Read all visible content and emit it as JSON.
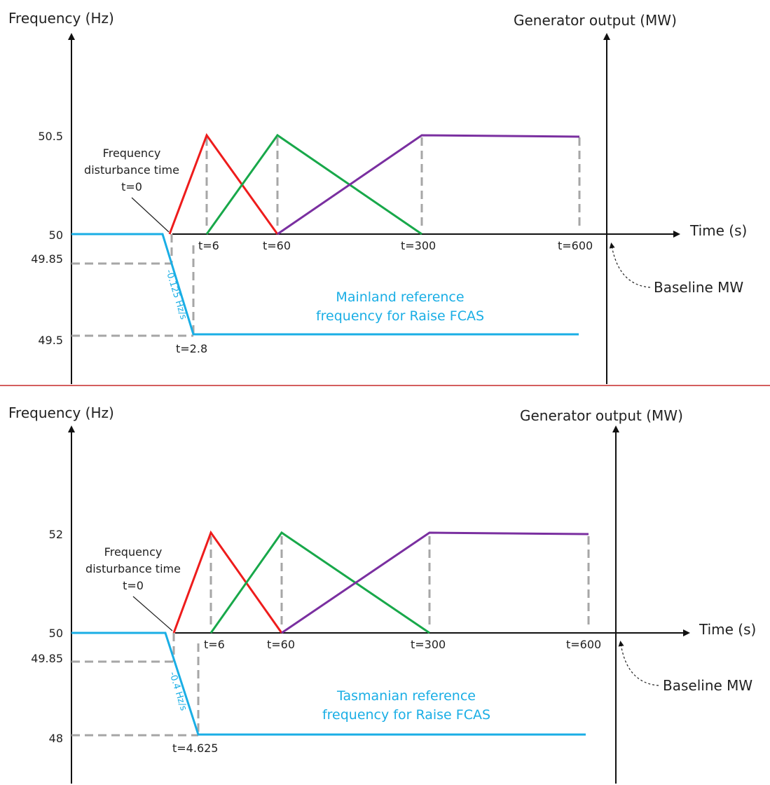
{
  "colors": {
    "axis": "#111111",
    "guide": "#a6a6a6",
    "freq": "#1aaee5",
    "red": "#ee1c1c",
    "green": "#18a84a",
    "purple": "#7a2fa0",
    "separator": "#c62828"
  },
  "panels": [
    {
      "id": "mainland",
      "y_axis_title": "Frequency (Hz)",
      "right_axis_title": "Generator output (MW)",
      "x_axis_title": "Time (s)",
      "baseline_label": "Baseline MW",
      "annotation": [
        "Frequency",
        "disturbance time",
        "t=0"
      ],
      "caption": [
        "Mainland reference",
        "frequency for Raise FCAS"
      ],
      "rate_label": "-0.125 Hz/s",
      "y_ticks": [
        "50.5",
        "50",
        "49.85",
        "49.5"
      ],
      "time_labels": [
        "t=6",
        "t=60",
        "t=300",
        "t=600"
      ],
      "drop_time_label": "t=2.8",
      "frequency_curve": {
        "nominal_hz": 50,
        "min_hz": 49.5,
        "rate_hz_per_s": -0.125,
        "end_time_s": 600
      },
      "generator_output": {
        "red": {
          "points_s": [
            0,
            6,
            60
          ]
        },
        "green": {
          "points_s": [
            6,
            60,
            300
          ]
        },
        "purple": {
          "points_s": [
            60,
            300,
            600
          ]
        }
      }
    },
    {
      "id": "tasmania",
      "y_axis_title": "Frequency (Hz)",
      "right_axis_title": "Generator output (MW)",
      "x_axis_title": "Time (s)",
      "baseline_label": "Baseline MW",
      "annotation": [
        "Frequency",
        "disturbance time",
        "t=0"
      ],
      "caption": [
        "Tasmanian reference",
        "frequency for Raise FCAS"
      ],
      "rate_label": "-0.4 Hz/s",
      "y_ticks": [
        "52",
        "50",
        "49.85",
        "48"
      ],
      "time_labels": [
        "t=6",
        "t=60",
        "t=300",
        "t=600"
      ],
      "drop_time_label": "t=4.625",
      "frequency_curve": {
        "nominal_hz": 50,
        "min_hz": 48,
        "rate_hz_per_s": -0.4,
        "end_time_s": 600
      },
      "generator_output": {
        "red": {
          "points_s": [
            0,
            6,
            60
          ]
        },
        "green": {
          "points_s": [
            6,
            60,
            300
          ]
        },
        "purple": {
          "points_s": [
            60,
            300,
            600
          ]
        }
      }
    }
  ]
}
